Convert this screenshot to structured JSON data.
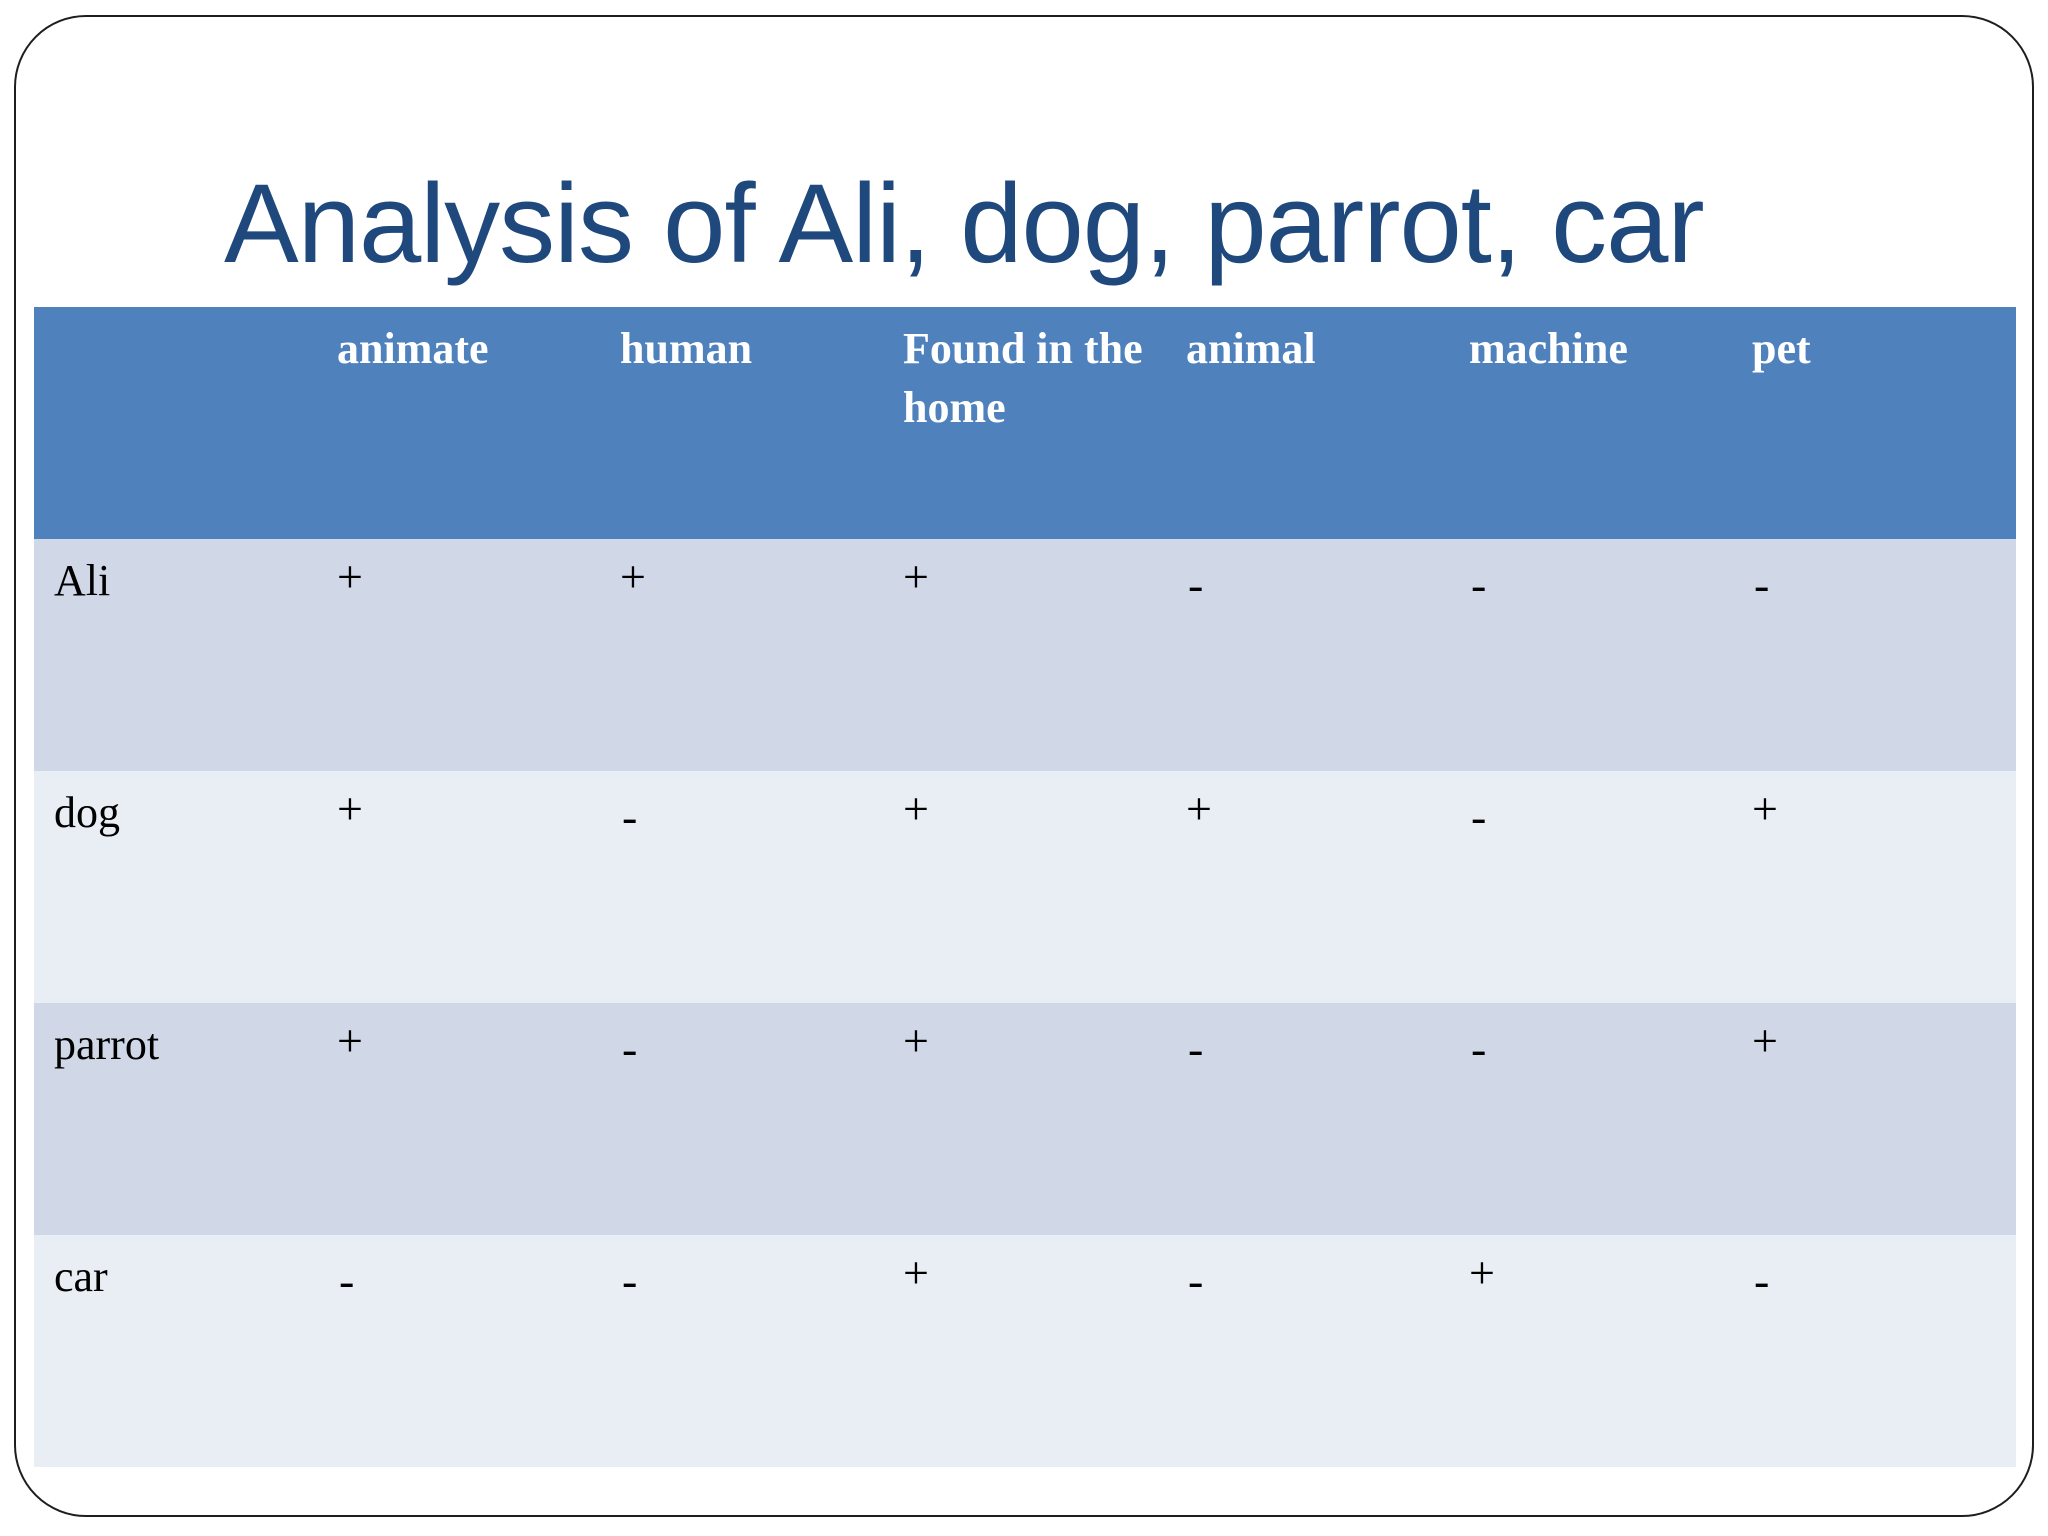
{
  "slide": {
    "title": "Analysis of Ali, dog, parrot, car"
  },
  "table": {
    "corner": "",
    "headers": [
      "animate",
      "human",
      "Found in the home",
      "animal",
      "machine",
      "pet"
    ],
    "rows": [
      {
        "label": "Ali",
        "values": [
          "+",
          "+",
          "+",
          "-",
          "-",
          "-"
        ]
      },
      {
        "label": "dog",
        "values": [
          "+",
          "-",
          "+",
          "+",
          "-",
          "+"
        ]
      },
      {
        "label": "parrot",
        "values": [
          "+",
          "-",
          "+",
          "-",
          "-",
          "+"
        ]
      },
      {
        "label": "car",
        "values": [
          "-",
          "-",
          "+",
          "-",
          "+",
          "-"
        ]
      }
    ]
  },
  "colors": {
    "title": "#1f497d",
    "header_fill": "#4f81bd",
    "band_dark": "#d0d8e8",
    "band_light": "#e9edf4",
    "frame_border": "#1e1e1e"
  }
}
